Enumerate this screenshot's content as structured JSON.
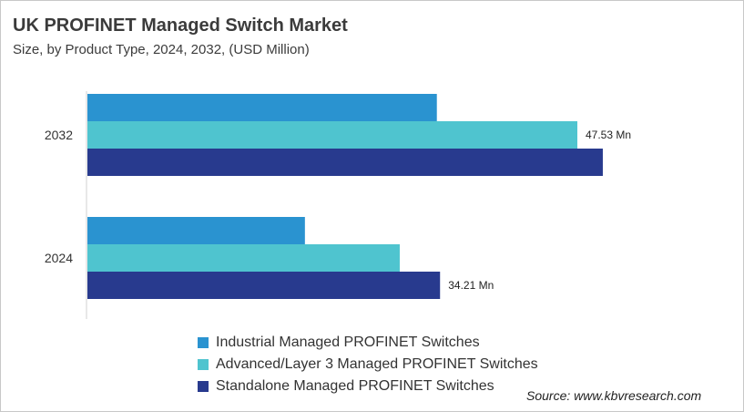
{
  "chart_data": {
    "type": "bar",
    "orientation": "horizontal",
    "title": "UK PROFINET Managed Switch Market",
    "subtitle": "Size, by Product Type, 2024, 2032, (USD Million)",
    "categories": [
      "2032",
      "2024"
    ],
    "series": [
      {
        "name": "Industrial Managed PROFINET Switches",
        "color": "#2a93d0",
        "values": [
          33.9,
          21.1
        ],
        "labels": [
          null,
          null
        ]
      },
      {
        "name": "Advanced/Layer 3 Managed PROFINET Switches",
        "color": "#4fc4cf",
        "values": [
          47.53,
          30.3
        ],
        "labels": [
          "47.53  Mn",
          null
        ]
      },
      {
        "name": "Standalone Managed PROFINET Switches",
        "color": "#283a8e",
        "values": [
          50.0,
          34.21
        ],
        "labels": [
          null,
          "34.21  Mn"
        ]
      }
    ],
    "xlim": [
      0,
      50
    ],
    "grid": false,
    "legend_position": "bottom"
  },
  "source": "Source: www.kbvresearch.com"
}
